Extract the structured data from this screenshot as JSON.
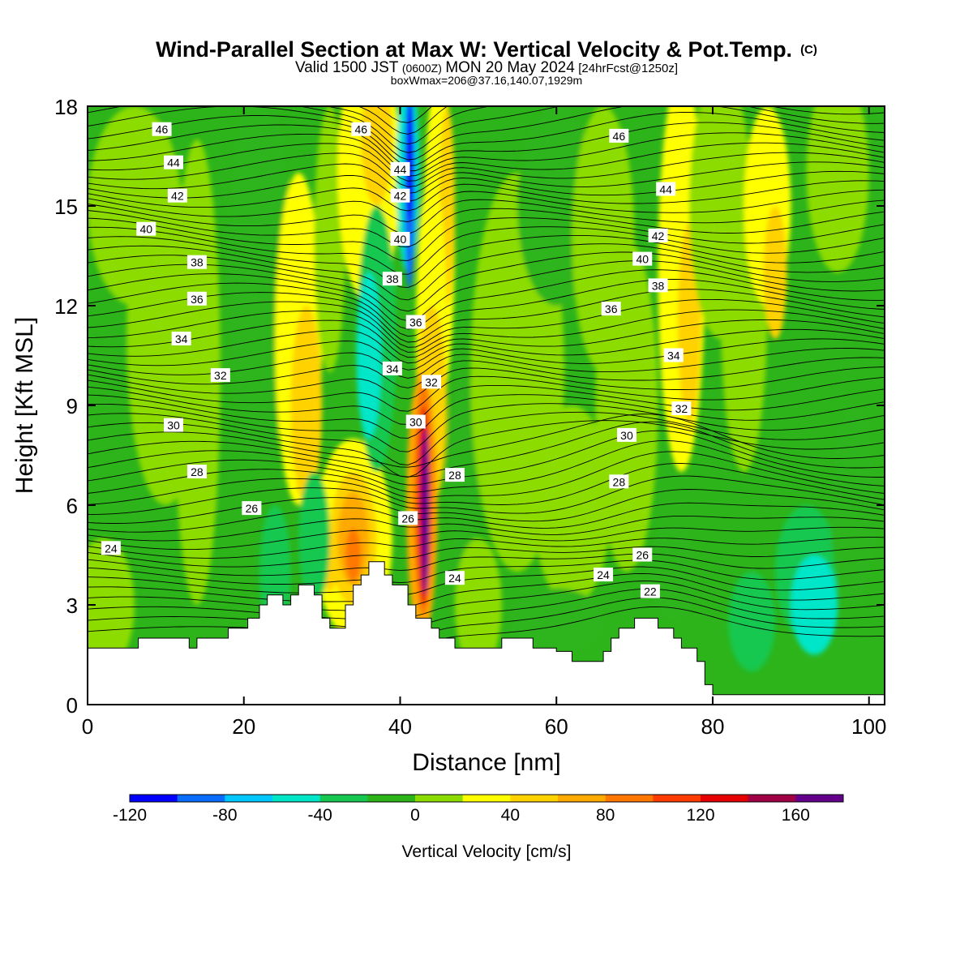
{
  "header": {
    "title_main": "Wind-Parallel Section at Max W: Vertical Velocity & Pot.Temp.",
    "title_mark": "(C)",
    "valid_a": "Valid 1500 JST",
    "valid_b": "(0600Z)",
    "valid_c": "MON 20 May 2024",
    "valid_d": "[24hrFcst@1250z]",
    "box_info": "boxWmax=206@37.16,140.07,1929m"
  },
  "colorbar": {
    "title": "Vertical Velocity [cm/s]",
    "colors": [
      "#0000ff",
      "#0a6cfa",
      "#00c8ff",
      "#00e6c8",
      "#16c850",
      "#2db41a",
      "#8cdc00",
      "#ffff00",
      "#ffd200",
      "#ffaa00",
      "#ff7800",
      "#ff3c00",
      "#e60000",
      "#a00046",
      "#64008c"
    ],
    "tick_values": [
      -120,
      -80,
      -40,
      0,
      40,
      80,
      120,
      160
    ],
    "tick_labels": [
      "-120",
      "-80",
      "-40",
      "0",
      "40",
      "80",
      "120",
      "160"
    ]
  },
  "chart_data": {
    "type": "heatmap",
    "xlabel": "Distance [nm]",
    "ylabel": "Height [Kft MSL]",
    "xlim": [
      0,
      102
    ],
    "ylim": [
      0,
      18
    ],
    "x_ticks": [
      0,
      20,
      40,
      60,
      80,
      100
    ],
    "x_tick_labels": [
      "0",
      "20",
      "40",
      "60",
      "80",
      "100"
    ],
    "y_ticks": [
      0,
      3,
      6,
      9,
      12,
      15,
      18
    ],
    "y_tick_labels": [
      "0",
      "3",
      "6",
      "9",
      "12",
      "15",
      "18"
    ],
    "field": "vertical velocity (cm/s), filled contours",
    "contour_field": "potential temperature, black contour lines",
    "max_updraft": {
      "x": 43,
      "y": 5.5,
      "w": 206
    },
    "core_downdraft": {
      "x": 41,
      "y": 15,
      "w": -110
    },
    "terrain": [
      {
        "x": 0,
        "h": 1.7
      },
      {
        "x": 6.5,
        "h": 1.7
      },
      {
        "x": 6.5,
        "h": 2.0
      },
      {
        "x": 13,
        "h": 2.0
      },
      {
        "x": 13,
        "h": 1.7
      },
      {
        "x": 14,
        "h": 1.7
      },
      {
        "x": 14,
        "h": 2.0
      },
      {
        "x": 18,
        "h": 2.0
      },
      {
        "x": 18,
        "h": 2.3
      },
      {
        "x": 20.5,
        "h": 2.3
      },
      {
        "x": 20.5,
        "h": 2.6
      },
      {
        "x": 22,
        "h": 2.6
      },
      {
        "x": 22,
        "h": 3.0
      },
      {
        "x": 23,
        "h": 3.0
      },
      {
        "x": 23,
        "h": 3.3
      },
      {
        "x": 25,
        "h": 3.3
      },
      {
        "x": 25,
        "h": 3.0
      },
      {
        "x": 26,
        "h": 3.0
      },
      {
        "x": 26,
        "h": 3.3
      },
      {
        "x": 27,
        "h": 3.3
      },
      {
        "x": 27,
        "h": 3.6
      },
      {
        "x": 29,
        "h": 3.6
      },
      {
        "x": 29,
        "h": 3.3
      },
      {
        "x": 30,
        "h": 3.3
      },
      {
        "x": 30,
        "h": 2.6
      },
      {
        "x": 31,
        "h": 2.6
      },
      {
        "x": 31,
        "h": 2.3
      },
      {
        "x": 33,
        "h": 2.3
      },
      {
        "x": 33,
        "h": 3.0
      },
      {
        "x": 34,
        "h": 3.0
      },
      {
        "x": 34,
        "h": 3.6
      },
      {
        "x": 35,
        "h": 3.6
      },
      {
        "x": 35,
        "h": 3.9
      },
      {
        "x": 36,
        "h": 3.9
      },
      {
        "x": 36,
        "h": 4.3
      },
      {
        "x": 38,
        "h": 4.3
      },
      {
        "x": 38,
        "h": 3.9
      },
      {
        "x": 39,
        "h": 3.9
      },
      {
        "x": 39,
        "h": 3.6
      },
      {
        "x": 41,
        "h": 3.6
      },
      {
        "x": 41,
        "h": 3.0
      },
      {
        "x": 42,
        "h": 3.0
      },
      {
        "x": 42,
        "h": 2.6
      },
      {
        "x": 44,
        "h": 2.6
      },
      {
        "x": 44,
        "h": 2.3
      },
      {
        "x": 45,
        "h": 2.3
      },
      {
        "x": 45,
        "h": 2.0
      },
      {
        "x": 47,
        "h": 2.0
      },
      {
        "x": 47,
        "h": 1.7
      },
      {
        "x": 53,
        "h": 1.7
      },
      {
        "x": 53,
        "h": 2.0
      },
      {
        "x": 57,
        "h": 2.0
      },
      {
        "x": 57,
        "h": 1.7
      },
      {
        "x": 60,
        "h": 1.7
      },
      {
        "x": 60,
        "h": 1.6
      },
      {
        "x": 62,
        "h": 1.6
      },
      {
        "x": 62,
        "h": 1.3
      },
      {
        "x": 66,
        "h": 1.3
      },
      {
        "x": 66,
        "h": 1.6
      },
      {
        "x": 67,
        "h": 1.6
      },
      {
        "x": 67,
        "h": 2.0
      },
      {
        "x": 68,
        "h": 2.0
      },
      {
        "x": 68,
        "h": 2.3
      },
      {
        "x": 70,
        "h": 2.3
      },
      {
        "x": 70,
        "h": 2.6
      },
      {
        "x": 73,
        "h": 2.6
      },
      {
        "x": 73,
        "h": 2.3
      },
      {
        "x": 75,
        "h": 2.3
      },
      {
        "x": 75,
        "h": 2.0
      },
      {
        "x": 76,
        "h": 2.0
      },
      {
        "x": 76,
        "h": 1.7
      },
      {
        "x": 78,
        "h": 1.7
      },
      {
        "x": 78,
        "h": 1.3
      },
      {
        "x": 79,
        "h": 1.3
      },
      {
        "x": 79,
        "h": 0.6
      },
      {
        "x": 80,
        "h": 0.6
      },
      {
        "x": 80,
        "h": 0.3
      },
      {
        "x": 102,
        "h": 0.3
      }
    ],
    "contour_labels": [
      {
        "text": "46",
        "x": 9.5,
        "y": 17.3
      },
      {
        "text": "44",
        "x": 11,
        "y": 16.3
      },
      {
        "text": "42",
        "x": 11.5,
        "y": 15.3
      },
      {
        "text": "40",
        "x": 7.5,
        "y": 14.3
      },
      {
        "text": "38",
        "x": 14,
        "y": 13.3
      },
      {
        "text": "36",
        "x": 14,
        "y": 12.2
      },
      {
        "text": "34",
        "x": 12,
        "y": 11.0
      },
      {
        "text": "32",
        "x": 17,
        "y": 9.9
      },
      {
        "text": "30",
        "x": 11,
        "y": 8.4
      },
      {
        "text": "28",
        "x": 14,
        "y": 7.0
      },
      {
        "text": "26",
        "x": 21,
        "y": 5.9
      },
      {
        "text": "24",
        "x": 3,
        "y": 4.7
      },
      {
        "text": "46",
        "x": 35,
        "y": 17.3
      },
      {
        "text": "44",
        "x": 40,
        "y": 16.1
      },
      {
        "text": "42",
        "x": 40,
        "y": 15.3
      },
      {
        "text": "40",
        "x": 40,
        "y": 14.0
      },
      {
        "text": "38",
        "x": 39,
        "y": 12.8
      },
      {
        "text": "36",
        "x": 42,
        "y": 11.5
      },
      {
        "text": "34",
        "x": 39,
        "y": 10.1
      },
      {
        "text": "32",
        "x": 44,
        "y": 9.7
      },
      {
        "text": "30",
        "x": 42,
        "y": 8.5
      },
      {
        "text": "28",
        "x": 47,
        "y": 6.9
      },
      {
        "text": "26",
        "x": 41,
        "y": 5.6
      },
      {
        "text": "24",
        "x": 47,
        "y": 3.8
      },
      {
        "text": "46",
        "x": 68,
        "y": 17.1
      },
      {
        "text": "44",
        "x": 74,
        "y": 15.5
      },
      {
        "text": "42",
        "x": 73,
        "y": 14.1
      },
      {
        "text": "40",
        "x": 71,
        "y": 13.4
      },
      {
        "text": "38",
        "x": 73,
        "y": 12.6
      },
      {
        "text": "36",
        "x": 67,
        "y": 11.9
      },
      {
        "text": "34",
        "x": 75,
        "y": 10.5
      },
      {
        "text": "32",
        "x": 76,
        "y": 8.9
      },
      {
        "text": "30",
        "x": 69,
        "y": 8.1
      },
      {
        "text": "28",
        "x": 68,
        "y": 6.7
      },
      {
        "text": "26",
        "x": 71,
        "y": 4.5
      },
      {
        "text": "24",
        "x": 66,
        "y": 3.9
      },
      {
        "text": "22",
        "x": 72,
        "y": 3.4
      }
    ]
  }
}
